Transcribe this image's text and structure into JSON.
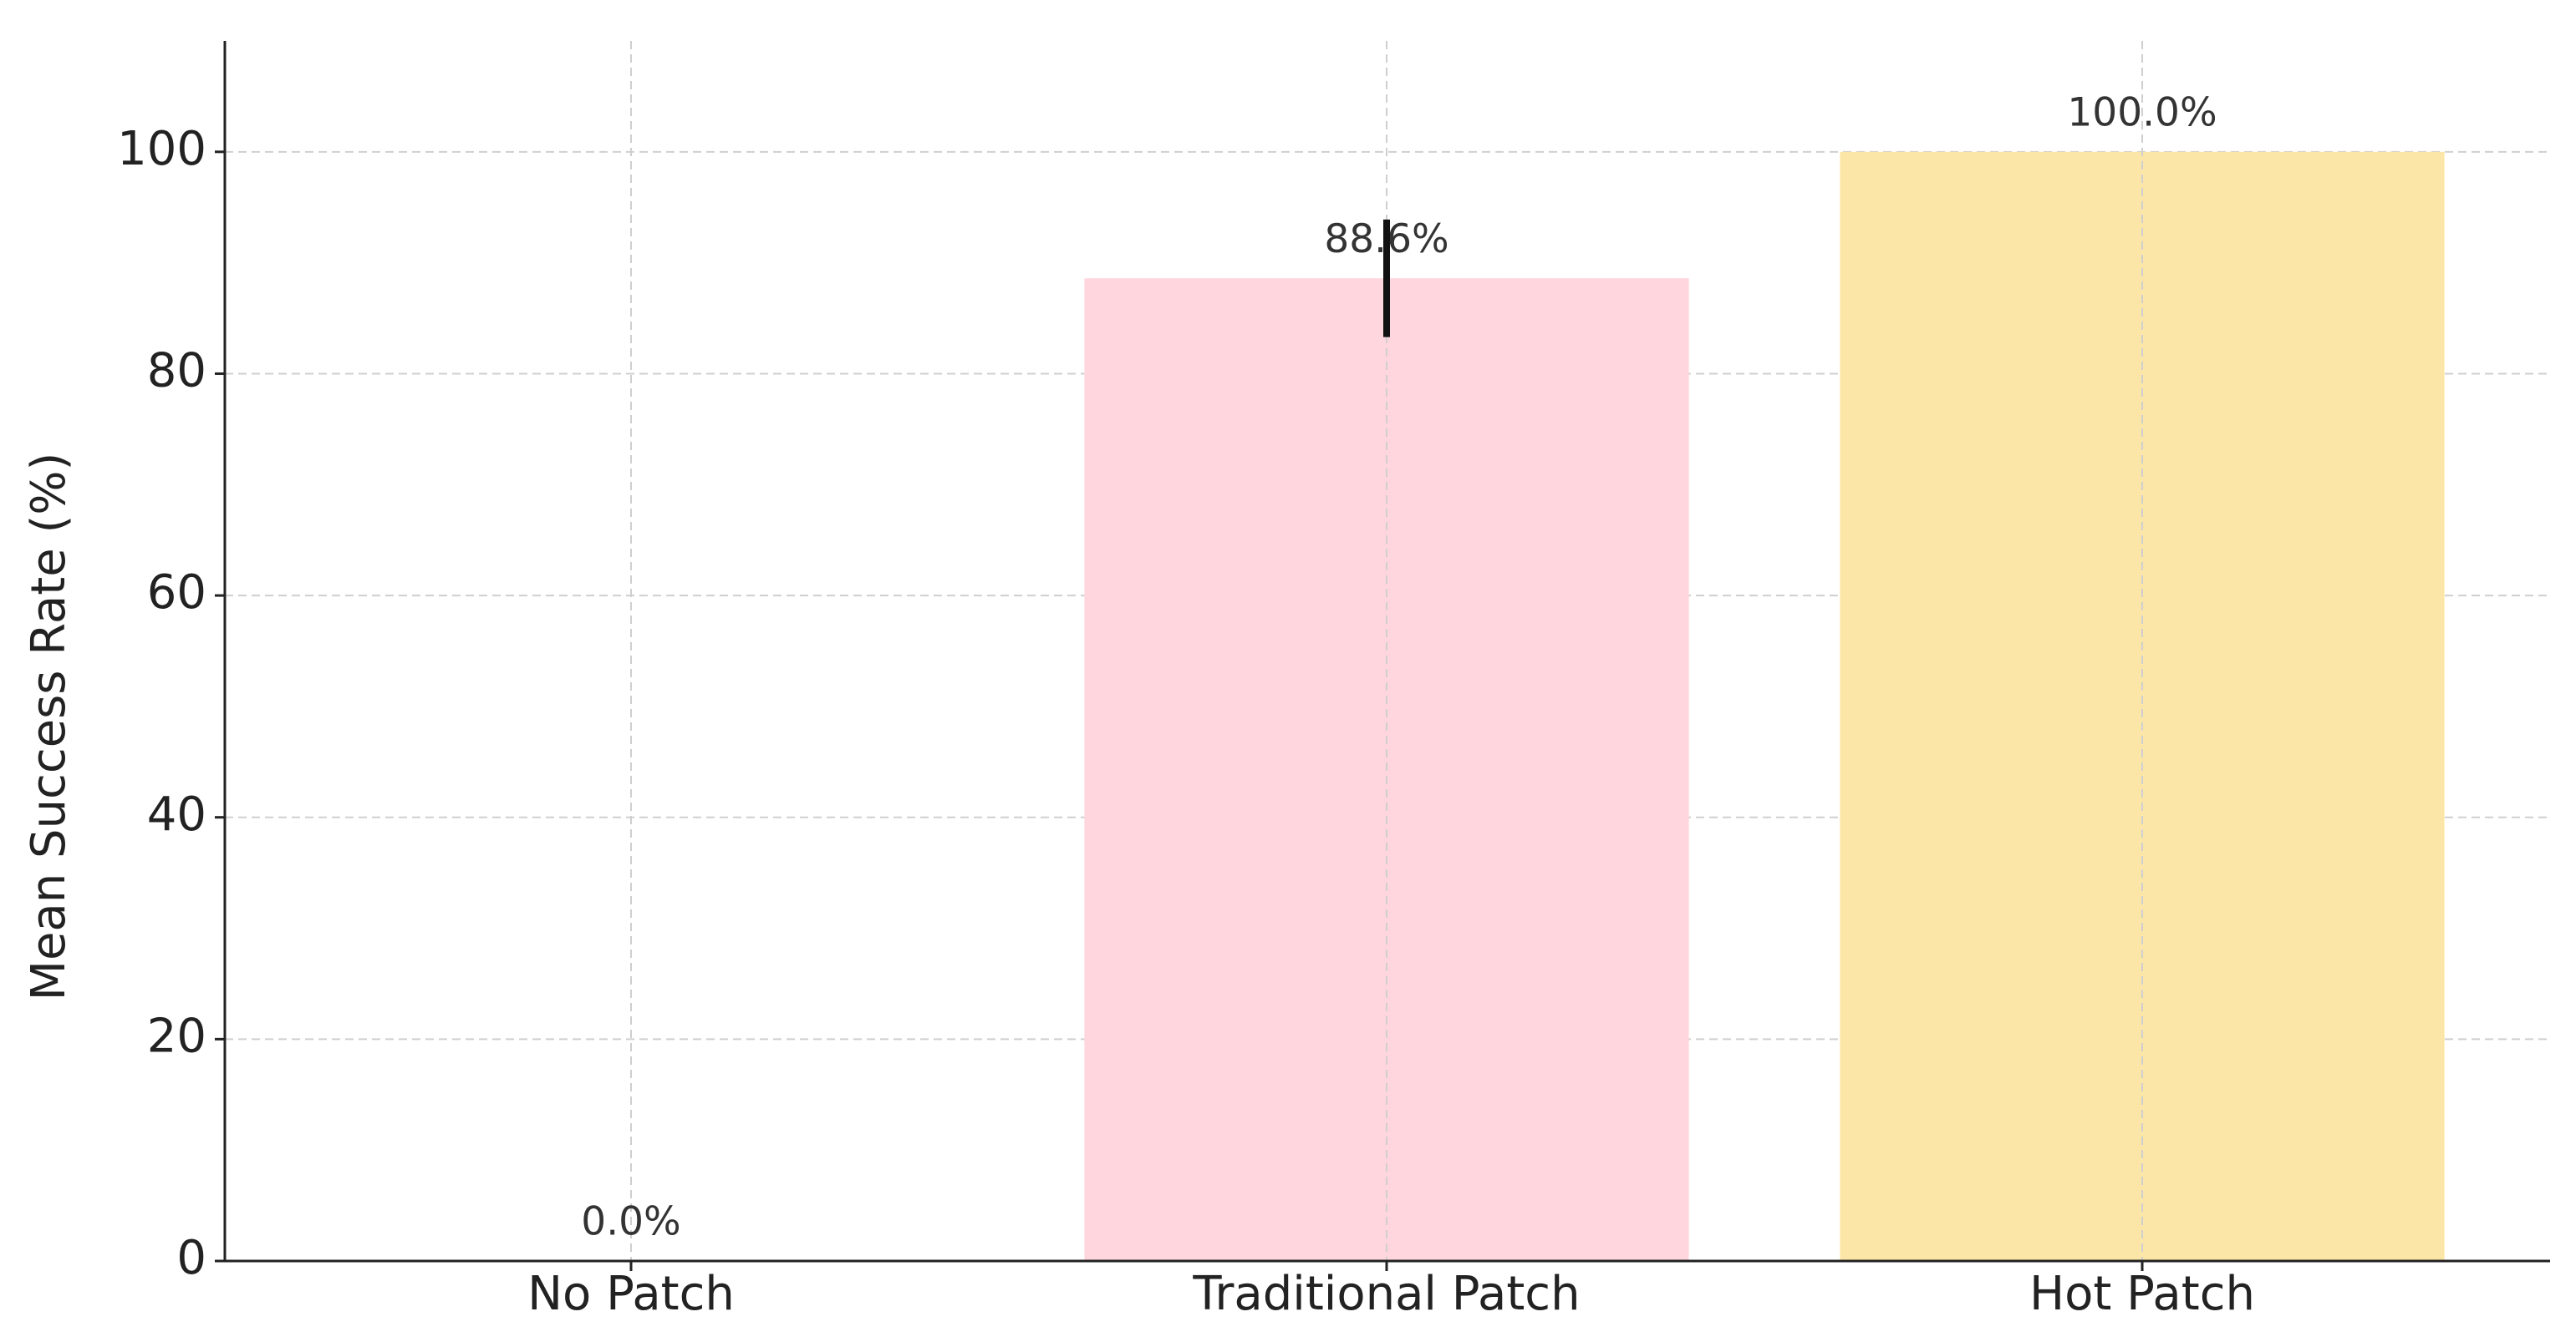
{
  "chart_data": {
    "type": "bar",
    "y_label": "Mean Success Rate (%)",
    "categories": [
      "No Patch",
      "Traditional Patch",
      "Hot Patch"
    ],
    "values": [
      0.0,
      88.6,
      100.0
    ],
    "value_labels": [
      "0.0%",
      "88.6%",
      "100.0%"
    ],
    "errors": [
      0,
      5.3,
      0
    ],
    "colors": [
      "#ffd6dd",
      "#ffd6dd",
      "#fce6a7"
    ],
    "ylim": [
      0,
      110
    ],
    "yticks": [
      0,
      20,
      40,
      60,
      80,
      100
    ],
    "grid": true
  }
}
